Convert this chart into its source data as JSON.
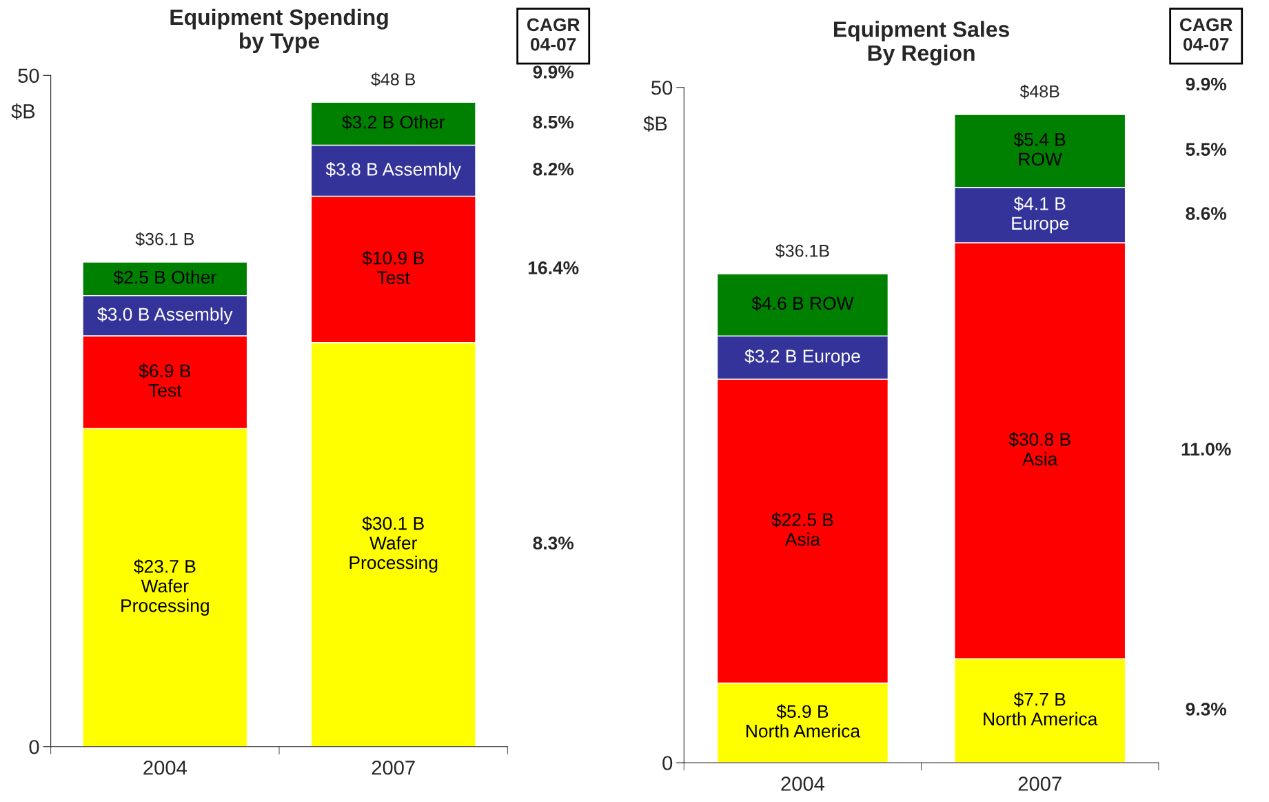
{
  "chart_data": [
    {
      "type": "bar",
      "title": "Equipment Spending\nby Type",
      "ylabel": "$B",
      "categories": [
        "2004",
        "2007"
      ],
      "stacked": true,
      "ylim": [
        0,
        50
      ],
      "yticks": [
        0,
        50
      ],
      "grid": false,
      "legend": false,
      "series": [
        {
          "color": "#ffff00",
          "values": [
            23.7,
            30.1
          ],
          "value_labels": [
            "$23.7 B\nWafer\nProcessing",
            "$30.1 B\nWafer\nProcessing"
          ]
        },
        {
          "color": "#ff0000",
          "values": [
            6.9,
            10.9
          ],
          "value_labels": [
            "$6.9 B\nTest",
            "$10.9 B\nTest"
          ]
        },
        {
          "color": "#333399",
          "values": [
            3.0,
            3.8
          ],
          "value_labels": [
            "$3.0 B Assembly",
            "$3.8 B Assembly"
          ]
        },
        {
          "color": "#008000",
          "values": [
            2.5,
            3.2
          ],
          "value_labels": [
            "$2.5 B Other",
            "$3.2 B Other"
          ]
        }
      ],
      "totals": [
        "$36.1 B",
        "$48 B"
      ],
      "annotations": [
        "CAGR\n04-07",
        "9.9%",
        "8.5%",
        "8.2%",
        "16.4%",
        "8.3%"
      ]
    },
    {
      "type": "bar",
      "title": "Equipment Sales\nBy Region",
      "ylabel": "$B",
      "categories": [
        "2004",
        "2007"
      ],
      "stacked": true,
      "ylim": [
        0,
        50
      ],
      "yticks": [
        0,
        50
      ],
      "grid": false,
      "legend": false,
      "series": [
        {
          "color": "#ffff00",
          "values": [
            5.9,
            7.7
          ],
          "value_labels": [
            "$5.9 B\nNorth America",
            "$7.7 B\nNorth America"
          ]
        },
        {
          "color": "#ff0000",
          "values": [
            22.5,
            30.8
          ],
          "value_labels": [
            "$22.5 B\nAsia",
            "$30.8 B\nAsia"
          ]
        },
        {
          "color": "#333399",
          "values": [
            3.2,
            4.1
          ],
          "value_labels": [
            "$3.2 B Europe",
            "$4.1 B\nEurope"
          ]
        },
        {
          "color": "#008000",
          "values": [
            4.6,
            5.4
          ],
          "value_labels": [
            "$4.6 B ROW",
            "$5.4 B\nROW"
          ]
        }
      ],
      "totals": [
        "$36.1B",
        "$48B"
      ],
      "annotations": [
        "CAGR\n04-07",
        "9.9%",
        "5.5%",
        "8.6%",
        "11.0%",
        "9.3%"
      ]
    }
  ]
}
